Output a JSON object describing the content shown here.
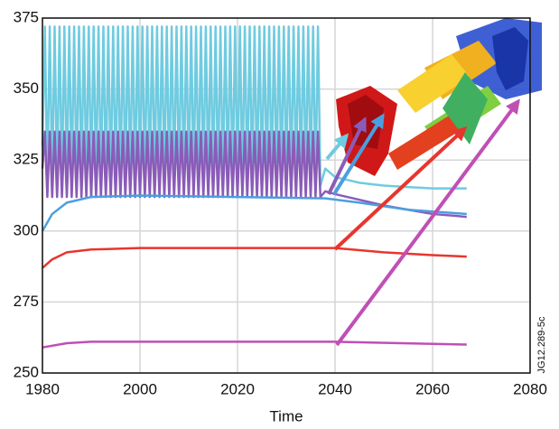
{
  "chart_data": {
    "type": "line",
    "x_label": "Time",
    "side_label": "JG12.289-5c",
    "xlim": [
      1980,
      2080
    ],
    "xticks": [
      1980,
      2000,
      2020,
      2040,
      2060,
      2080
    ],
    "ylim": [
      250,
      375
    ],
    "yticks": [
      250,
      275,
      300,
      325,
      350,
      375
    ],
    "grid": true,
    "x": [
      1980,
      1980.5,
      1981,
      1981.5,
      1982,
      1982.5,
      1983,
      1983.5,
      1984,
      1984.5,
      1985,
      1985.5,
      1986,
      1986.5,
      1987,
      1987.5,
      1988,
      1988.5,
      1989,
      1989.5,
      1990,
      1990.5,
      1991,
      1991.5,
      1992,
      1992.5,
      1993,
      1993.5,
      1994,
      1994.5,
      1995,
      1995.5,
      1996,
      1996.5,
      1997,
      1997.5,
      1998,
      1998.5,
      1999,
      1999.5,
      2000,
      2000.5,
      2001,
      2001.5,
      2002,
      2002.5,
      2003,
      2003.5,
      2004,
      2004.5,
      2005,
      2005.5,
      2006,
      2006.5,
      2007,
      2007.5,
      2008,
      2008.5,
      2009,
      2009.5,
      2010,
      2010.5,
      2011,
      2011.5,
      2012,
      2012.5,
      2013,
      2013.5,
      2014,
      2014.5,
      2015,
      2015.5,
      2016,
      2016.5,
      2017,
      2017.5,
      2018,
      2018.5,
      2019,
      2019.5,
      2020,
      2020.5,
      2021,
      2021.5,
      2022,
      2022.5,
      2023,
      2023.5,
      2024,
      2024.5,
      2025,
      2025.5,
      2026,
      2026.5,
      2027,
      2027.5,
      2028,
      2028.5,
      2029,
      2029.5,
      2030,
      2030.5,
      2031,
      2031.5,
      2032,
      2032.5,
      2033,
      2033.5,
      2034,
      2034.5,
      2035,
      2035.5,
      2036,
      2036.5,
      2037,
      2038,
      2040,
      2045,
      2050,
      2055,
      2060,
      2067
    ],
    "series": [
      {
        "color": "#6fcbe0",
        "values": [
          330,
          372,
          316,
          372,
          316,
          372,
          316,
          372,
          316,
          372,
          316,
          372,
          316,
          372,
          316,
          372,
          316,
          372,
          316,
          372,
          316,
          372,
          316,
          372,
          316,
          372,
          316,
          372,
          316,
          372,
          316,
          372,
          316,
          372,
          316,
          372,
          316,
          372,
          316,
          372,
          316,
          372,
          316,
          372,
          316,
          372,
          316,
          372,
          316,
          372,
          316,
          372,
          316,
          372,
          316,
          372,
          316,
          372,
          316,
          372,
          316,
          372,
          316,
          372,
          316,
          372,
          316,
          372,
          316,
          372,
          316,
          372,
          316,
          372,
          316,
          372,
          316,
          372,
          316,
          372,
          316,
          372,
          316,
          372,
          316,
          372,
          316,
          372,
          316,
          372,
          316,
          372,
          316,
          372,
          316,
          372,
          316,
          372,
          316,
          372,
          316,
          372,
          316,
          372,
          316,
          372,
          316,
          372,
          316,
          372,
          316,
          372,
          316,
          372,
          316,
          322,
          319,
          317,
          316,
          315.5,
          315,
          315
        ]
      },
      {
        "color": "#8a5cb8",
        "values": [
          322,
          335,
          312,
          335,
          312,
          335,
          312,
          335,
          312,
          335,
          312,
          335,
          312,
          335,
          312,
          335,
          312,
          335,
          312,
          335,
          312,
          335,
          312,
          335,
          312,
          335,
          312,
          335,
          312,
          335,
          312,
          335,
          312,
          335,
          312,
          335,
          312,
          335,
          312,
          335,
          312,
          335,
          312,
          335,
          312,
          335,
          312,
          335,
          312,
          335,
          312,
          335,
          312,
          335,
          312,
          335,
          312,
          335,
          312,
          335,
          312,
          335,
          312,
          335,
          312,
          335,
          312,
          335,
          312,
          335,
          312,
          335,
          312,
          335,
          312,
          335,
          312,
          335,
          312,
          335,
          312,
          335,
          312,
          335,
          312,
          335,
          312,
          335,
          312,
          335,
          312,
          335,
          312,
          335,
          312,
          335,
          312,
          335,
          312,
          335,
          312,
          335,
          312,
          335,
          312,
          335,
          312,
          335,
          312,
          335,
          312,
          335,
          312,
          335,
          312,
          314,
          313,
          311,
          309,
          307.5,
          306,
          305
        ]
      },
      {
        "color": "#4a9fe0",
        "x": [
          1980,
          1982,
          1985,
          1990,
          2000,
          2020,
          2038,
          2045,
          2055,
          2067
        ],
        "values": [
          300,
          306,
          310,
          312,
          312.5,
          312,
          311.5,
          310,
          307.5,
          306
        ]
      },
      {
        "color": "#e8352e",
        "x": [
          1980,
          1982,
          1985,
          1990,
          2000,
          2040,
          2050,
          2060,
          2067
        ],
        "values": [
          287,
          290,
          292.5,
          293.5,
          294,
          294,
          292.5,
          291.5,
          291
        ]
      },
      {
        "color": "#c04fb5",
        "x": [
          1980,
          1985,
          1990,
          2040,
          2067
        ],
        "values": [
          259,
          260.5,
          261,
          261,
          260
        ]
      }
    ]
  }
}
